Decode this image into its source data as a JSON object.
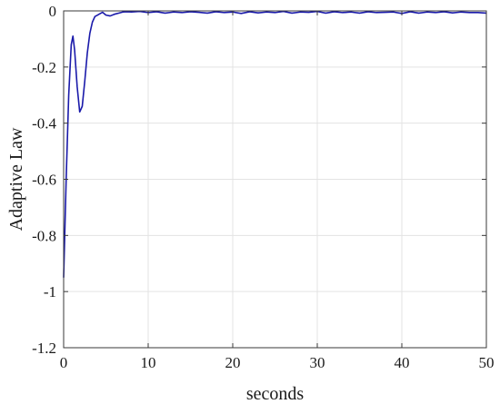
{
  "chart_data": {
    "type": "line",
    "title": "",
    "xlabel": "seconds",
    "ylabel": "Adaptive Law",
    "xlim": [
      0,
      50
    ],
    "ylim": [
      -1.2,
      0
    ],
    "xticks": [
      0,
      10,
      20,
      30,
      40,
      50
    ],
    "yticks": [
      0,
      -0.2,
      -0.4,
      -0.6,
      -0.8,
      -1,
      -1.2
    ],
    "xtick_labels": [
      "0",
      "10",
      "20",
      "30",
      "40",
      "50"
    ],
    "ytick_labels": [
      "0",
      "-0.2",
      "-0.4",
      "-0.6",
      "-0.8",
      "-1",
      "-1.2"
    ],
    "grid": true,
    "legend": "none",
    "series": [
      {
        "color": "#1a1aaa",
        "x": [
          0,
          0.3,
          0.6,
          0.9,
          1.1,
          1.3,
          1.6,
          1.9,
          2.2,
          2.5,
          2.8,
          3.1,
          3.4,
          3.7,
          4.0,
          4.3,
          4.6,
          5.0,
          5.5,
          6.0,
          6.5,
          7.0,
          7.5,
          8.0,
          9.0,
          10.0,
          11.0,
          12.0,
          13.0,
          14.0,
          15.0,
          16.0,
          17.0,
          18.0,
          19.0,
          20.0,
          21.0,
          22.0,
          23.0,
          24.0,
          25.0,
          26.0,
          27.0,
          28.0,
          29.0,
          30.0,
          31.0,
          32.0,
          33.0,
          34.0,
          35.0,
          36.0,
          37.0,
          38.0,
          39.0,
          40.0,
          41.0,
          42.0,
          43.0,
          44.0,
          45.0,
          46.0,
          47.0,
          48.0,
          49.0,
          50.0
        ],
        "y": [
          -0.95,
          -0.6,
          -0.3,
          -0.12,
          -0.09,
          -0.14,
          -0.27,
          -0.36,
          -0.34,
          -0.25,
          -0.15,
          -0.08,
          -0.04,
          -0.02,
          -0.015,
          -0.01,
          -0.005,
          -0.015,
          -0.018,
          -0.012,
          -0.008,
          -0.004,
          -0.003,
          -0.004,
          -0.002,
          -0.006,
          -0.003,
          -0.008,
          -0.004,
          -0.006,
          -0.003,
          -0.005,
          -0.008,
          -0.003,
          -0.006,
          -0.004,
          -0.009,
          -0.003,
          -0.007,
          -0.004,
          -0.006,
          -0.002,
          -0.008,
          -0.004,
          -0.005,
          -0.002,
          -0.008,
          -0.003,
          -0.006,
          -0.004,
          -0.008,
          -0.003,
          -0.006,
          -0.005,
          -0.004,
          -0.009,
          -0.003,
          -0.008,
          -0.004,
          -0.006,
          -0.003,
          -0.007,
          -0.004,
          -0.006,
          -0.006,
          -0.008
        ]
      }
    ]
  }
}
